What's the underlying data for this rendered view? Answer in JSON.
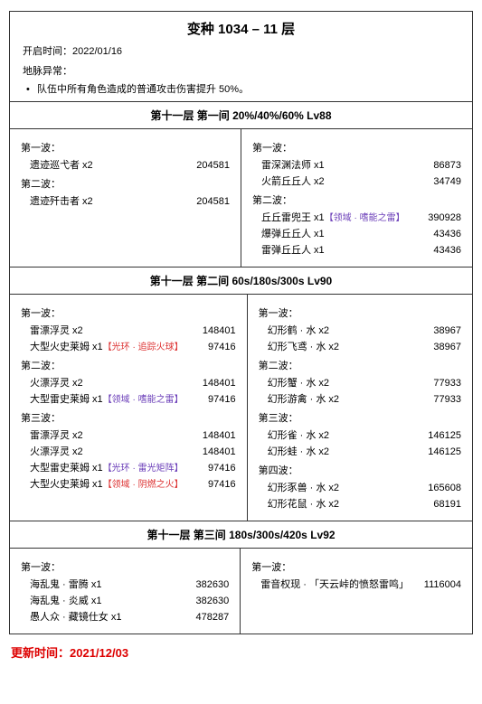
{
  "title": "变种 1034 – 11 层",
  "start_label": "开启时间：",
  "start_date": "2022/01/16",
  "leyline_label": "地脉异常：",
  "leyline_item": "队伍中所有角色造成的普通攻击伤害提升 50%。",
  "chambers": [
    {
      "header": "第十一层  第一间  20%/40%/60% Lv88",
      "left": [
        {
          "wave": "第一波：",
          "rows": [
            {
              "n": "遗迹巡弋者 x2",
              "h": "204581"
            }
          ]
        },
        {
          "wave": "第二波：",
          "rows": [
            {
              "n": "遗迹歼击者 x2",
              "h": "204581"
            }
          ]
        }
      ],
      "right": [
        {
          "wave": "第一波：",
          "rows": [
            {
              "n": "雷深渊法师 x1",
              "h": "86873"
            },
            {
              "n": "火箭丘丘人 x2",
              "h": "34749"
            }
          ]
        },
        {
          "wave": "第二波：",
          "rows": [
            {
              "n": "丘丘雷兜王 x1",
              "a": "【领域 · 嗜能之雷】",
              "c": "#6a3db8",
              "h": "390928"
            },
            {
              "n": "爆弹丘丘人 x1",
              "h": "43436"
            },
            {
              "n": "雷弹丘丘人 x1",
              "h": "43436"
            }
          ]
        }
      ]
    },
    {
      "header": "第十一层  第二间  60s/180s/300s Lv90",
      "left": [
        {
          "wave": "第一波：",
          "rows": [
            {
              "n": "雷漂浮灵 x2",
              "h": "148401"
            },
            {
              "n": "大型火史莱姆 x1",
              "a": "【光环 · 追踪火球】",
              "c": "#d33",
              "h": "97416"
            }
          ]
        },
        {
          "wave": "第二波：",
          "rows": [
            {
              "n": "火漂浮灵 x2",
              "h": "148401"
            },
            {
              "n": "大型雷史莱姆 x1",
              "a": "【领域 · 嗜能之雷】",
              "c": "#6a3db8",
              "h": "97416"
            }
          ]
        },
        {
          "wave": "第三波：",
          "rows": [
            {
              "n": "雷漂浮灵 x2",
              "h": "148401"
            },
            {
              "n": "火漂浮灵 x2",
              "h": "148401"
            },
            {
              "n": "大型雷史莱姆 x1",
              "a": "【光环 · 雷光矩阵】",
              "c": "#6a3db8",
              "h": "97416"
            },
            {
              "n": "大型火史莱姆 x1",
              "a": "【领域 · 阴燃之火】",
              "c": "#d33",
              "h": "97416"
            }
          ]
        }
      ],
      "right": [
        {
          "wave": "第一波：",
          "rows": [
            {
              "n": "幻形鹤 · 水 x2",
              "h": "38967"
            },
            {
              "n": "幻形飞鸢 · 水 x2",
              "h": "38967"
            }
          ]
        },
        {
          "wave": "第二波：",
          "rows": [
            {
              "n": "幻形蟹 · 水 x2",
              "h": "77933"
            },
            {
              "n": "幻形游禽 · 水 x2",
              "h": "77933"
            }
          ]
        },
        {
          "wave": "第三波：",
          "rows": [
            {
              "n": "幻形雀 · 水 x2",
              "h": "146125"
            },
            {
              "n": "幻形蛙 · 水 x2",
              "h": "146125"
            }
          ]
        },
        {
          "wave": "第四波：",
          "rows": [
            {
              "n": "幻形豕兽 · 水 x2",
              "h": "165608"
            },
            {
              "n": "幻形花鼠 · 水 x2",
              "h": "68191"
            }
          ]
        }
      ]
    },
    {
      "header": "第十一层  第三间  180s/300s/420s Lv92",
      "left": [
        {
          "wave": "第一波：",
          "rows": [
            {
              "n": "海乱鬼 · 雷腾 x1",
              "h": "382630"
            },
            {
              "n": "海乱鬼 · 炎威 x1",
              "h": "382630"
            },
            {
              "n": "愚人众 · 藏镜仕女 x1",
              "h": "478287"
            }
          ]
        }
      ],
      "right": [
        {
          "wave": "第一波：",
          "rows": [
            {
              "n": "雷音权现 · 「天云峠的愤怒雷鸣」",
              "h": "1116004"
            }
          ]
        }
      ]
    }
  ],
  "update_label": "更新时间：",
  "update_date": "2021/12/03"
}
